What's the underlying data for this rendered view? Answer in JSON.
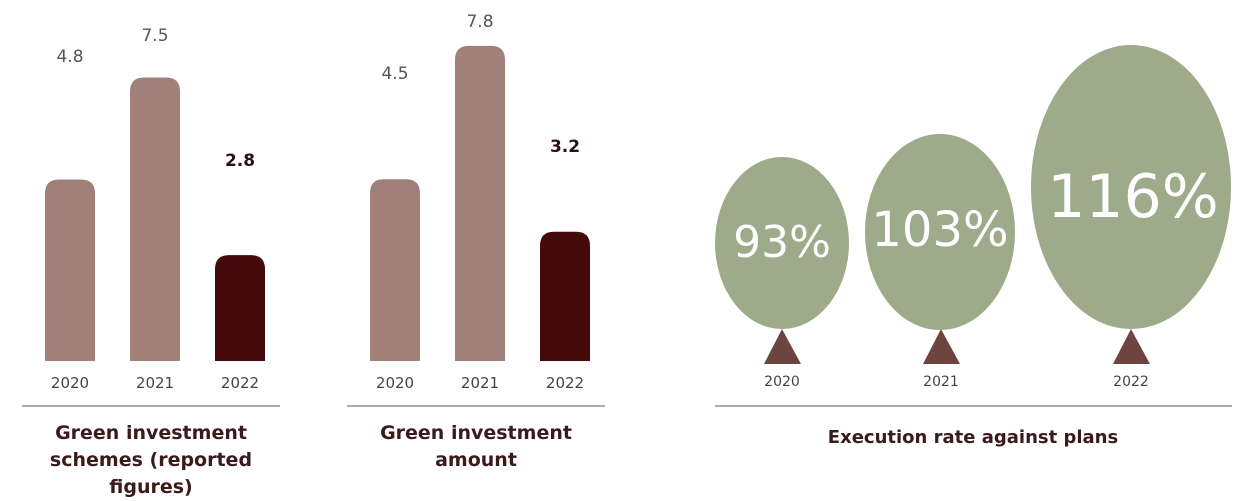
{
  "chart_data": [
    {
      "type": "bar",
      "categories": [
        "2020",
        "2021",
        "2022"
      ],
      "values": [
        4.8,
        7.5,
        2.8
      ],
      "value_labels": [
        "4.8",
        "7.5",
        "2.8"
      ],
      "title": "Green investment schemes (reported figures)",
      "highlight_category": "2022",
      "colors": {
        "default": "#a08079",
        "highlight": "#440a0b"
      }
    },
    {
      "type": "bar",
      "categories": [
        "2020",
        "2021",
        "2022"
      ],
      "values": [
        4.5,
        7.8,
        3.2
      ],
      "value_labels": [
        "4.5",
        "7.8",
        "3.2"
      ],
      "title": "Green investment amount",
      "highlight_category": "2022",
      "colors": {
        "default": "#a08079",
        "highlight": "#440a0b"
      }
    },
    {
      "type": "bubble",
      "categories": [
        "2020",
        "2021",
        "2022"
      ],
      "values": [
        93,
        103,
        116
      ],
      "value_labels": [
        "93%",
        "103%",
        "116%"
      ],
      "title": "Execution rate against plans",
      "colors": {
        "bubble": "#9eab8b",
        "trunk": "#6e4440"
      }
    }
  ]
}
